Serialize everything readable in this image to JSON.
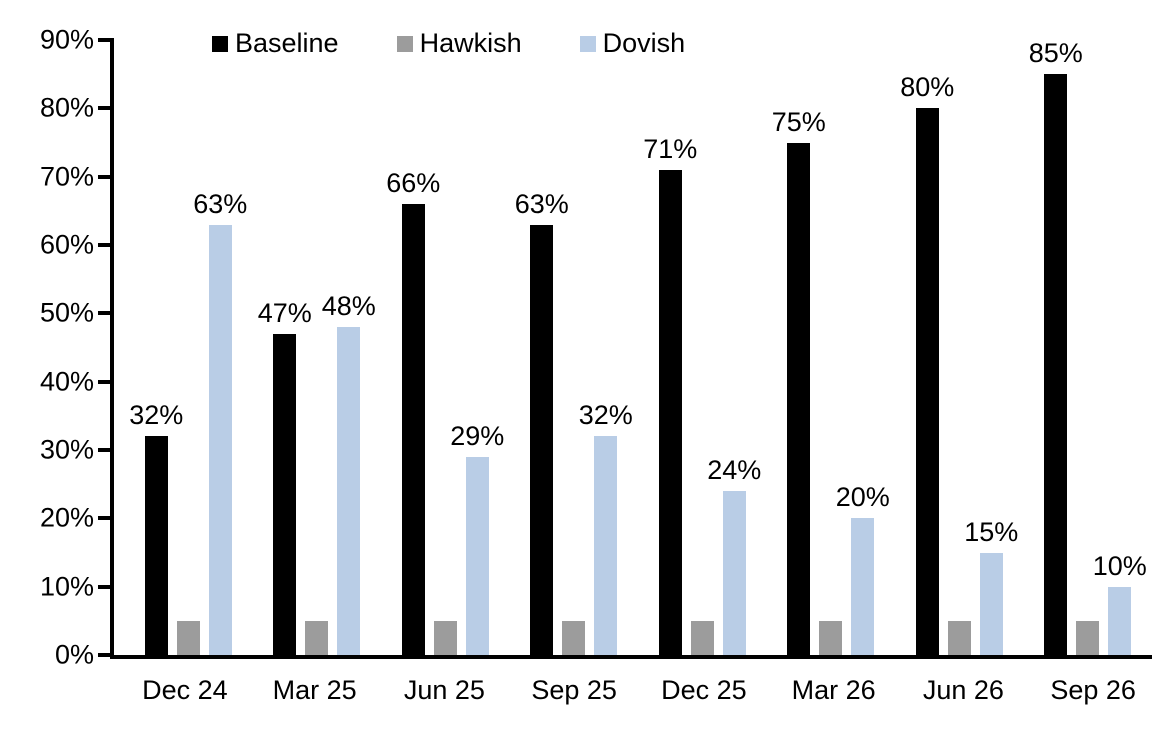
{
  "chart_data": {
    "type": "bar",
    "title": "",
    "categories": [
      "Dec 24",
      "Mar 25",
      "Jun 25",
      "Sep 25",
      "Dec 25",
      "Mar 26",
      "Jun 26",
      "Sep 26"
    ],
    "series": [
      {
        "name": "Baseline",
        "color": "#000000",
        "values": [
          32,
          47,
          66,
          63,
          71,
          75,
          80,
          85
        ],
        "labels": [
          "32%",
          "47%",
          "66%",
          "63%",
          "71%",
          "75%",
          "80%",
          "85%"
        ],
        "show_labels": true
      },
      {
        "name": "Hawkish",
        "color": "#9c9c9c",
        "values": [
          5,
          5,
          5,
          5,
          5,
          5,
          5,
          5
        ],
        "labels": [
          "",
          "",
          "",
          "",
          "",
          "",
          "",
          ""
        ],
        "show_labels": false
      },
      {
        "name": "Dovish",
        "color": "#b9cde6",
        "values": [
          63,
          48,
          29,
          32,
          24,
          20,
          15,
          10
        ],
        "labels": [
          "63%",
          "48%",
          "29%",
          "32%",
          "24%",
          "20%",
          "15%",
          "10%"
        ],
        "show_labels": true
      }
    ],
    "ylim": [
      0,
      90
    ],
    "ytick_step": 10,
    "yticks": [
      "0%",
      "10%",
      "20%",
      "30%",
      "40%",
      "50%",
      "60%",
      "70%",
      "80%",
      "90%"
    ],
    "grid": false,
    "legend_position": "top",
    "axis_color": "#000000"
  }
}
